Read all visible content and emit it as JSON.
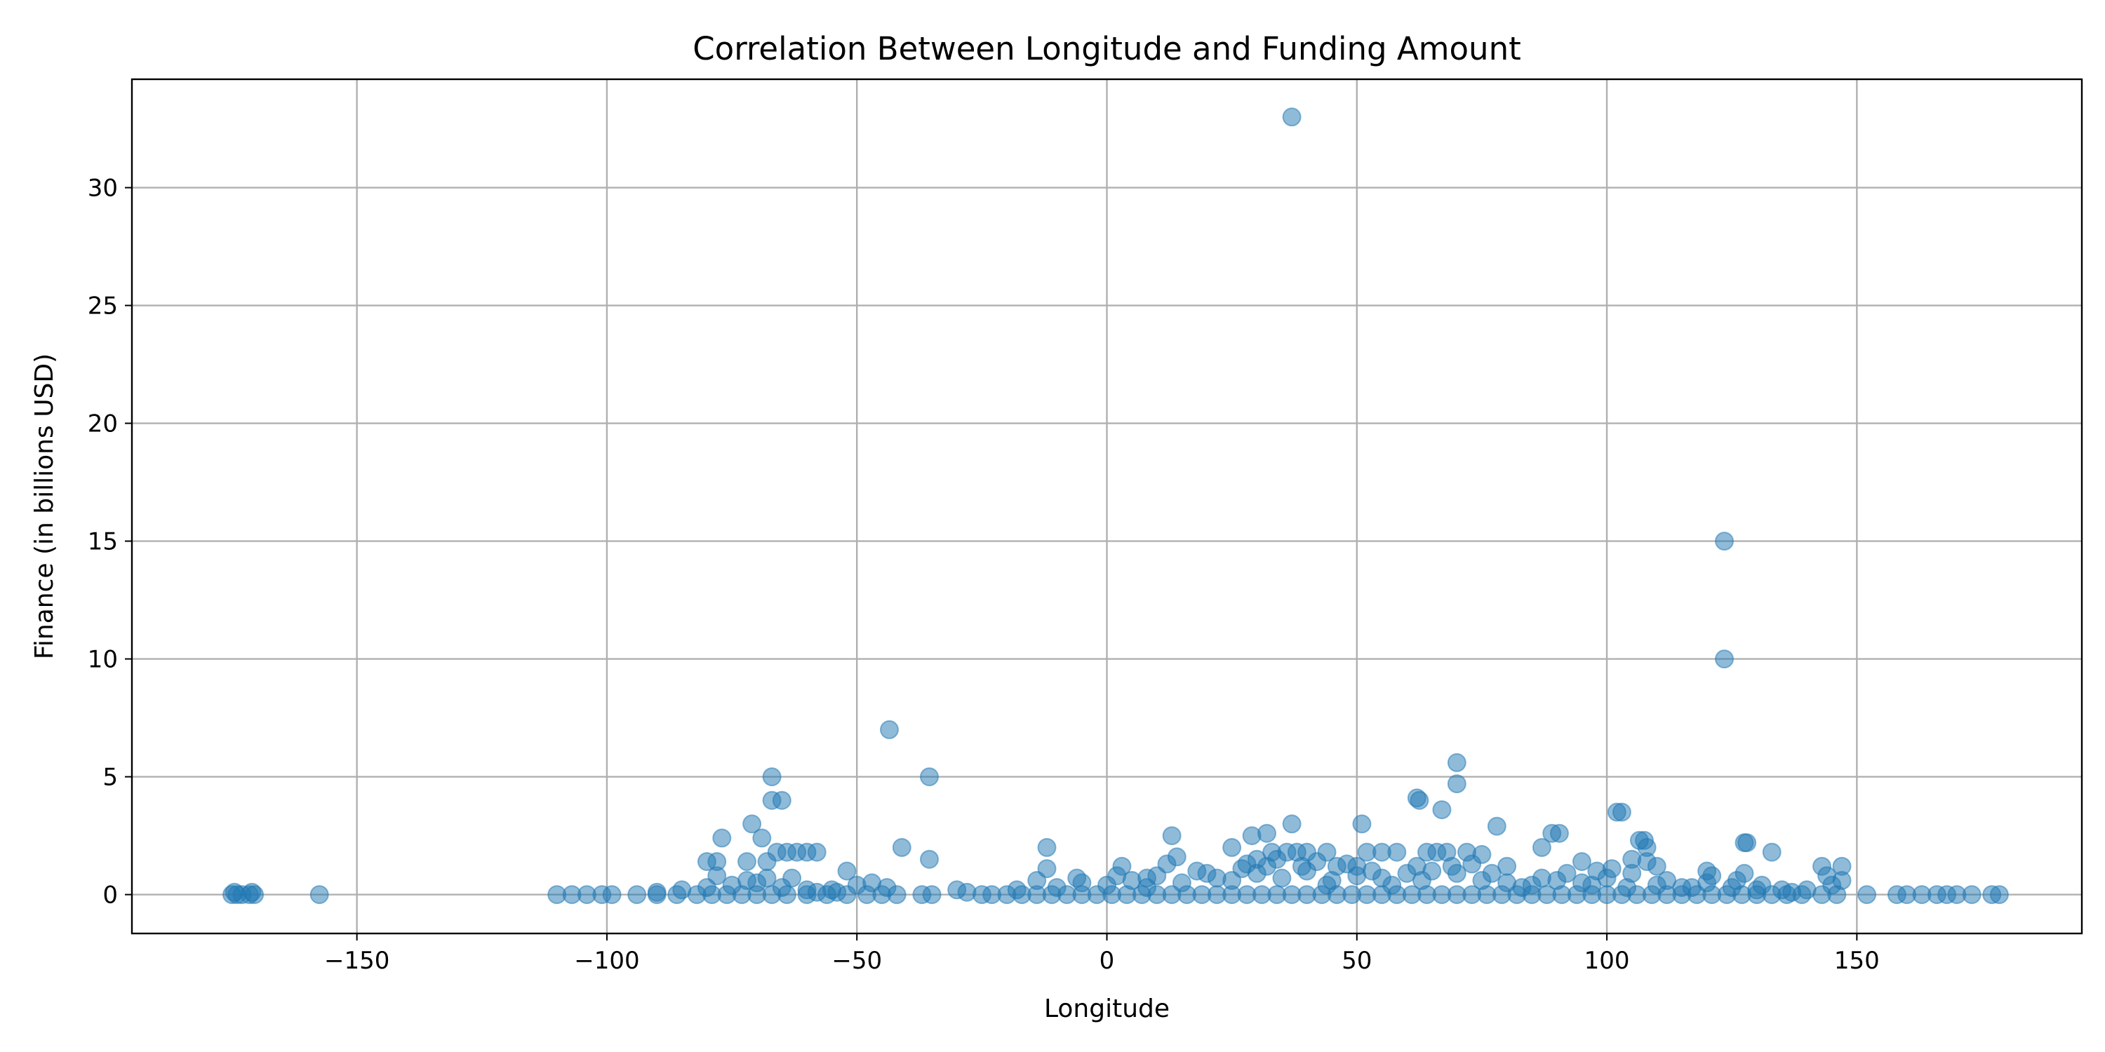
{
  "chart_data": {
    "type": "scatter",
    "title": "Correlation Between Longitude and Funding Amount",
    "xlabel": "Longitude",
    "ylabel": "Finance (in billions USD)",
    "xlim": [
      -195,
      195
    ],
    "ylim": [
      -1.65,
      34.6
    ],
    "grid": true,
    "color": "#1f77b4",
    "x_ticks": [
      -150,
      -100,
      -50,
      0,
      50,
      100,
      150
    ],
    "x_tick_labels": [
      "−150",
      "−100",
      "−50",
      "0",
      "50",
      "100",
      "150"
    ],
    "y_ticks": [
      0,
      5,
      10,
      15,
      20,
      25,
      30
    ],
    "y_tick_labels": [
      "0",
      "5",
      "10",
      "15",
      "20",
      "25",
      "30"
    ],
    "points": [
      [
        37,
        33
      ],
      [
        123.5,
        15
      ],
      [
        123.5,
        10
      ],
      [
        -43.5,
        7
      ],
      [
        70,
        5.6
      ],
      [
        -67,
        5
      ],
      [
        -35.5,
        5
      ],
      [
        70,
        4.7
      ],
      [
        62,
        4.1
      ],
      [
        -67,
        4
      ],
      [
        -65,
        4
      ],
      [
        62.5,
        4
      ],
      [
        67,
        3.6
      ],
      [
        102,
        3.5
      ],
      [
        103,
        3.5
      ],
      [
        51,
        3
      ],
      [
        37,
        3
      ],
      [
        -71,
        3
      ],
      [
        78,
        2.9
      ],
      [
        89,
        2.6
      ],
      [
        90.5,
        2.6
      ],
      [
        29,
        2.5
      ],
      [
        32,
        2.6
      ],
      [
        13,
        2.5
      ],
      [
        -77,
        2.4
      ],
      [
        -69,
        2.4
      ],
      [
        106.5,
        2.3
      ],
      [
        107.5,
        2.3
      ],
      [
        127.5,
        2.2
      ],
      [
        128,
        2.2
      ],
      [
        25,
        2
      ],
      [
        -12,
        2
      ],
      [
        -41,
        2
      ],
      [
        87,
        2
      ],
      [
        108,
        2
      ],
      [
        133,
        1.8
      ],
      [
        -35.5,
        1.5
      ],
      [
        -72,
        1.4
      ],
      [
        -78,
        1.4
      ],
      [
        -80,
        1.4
      ],
      [
        -68,
        1.4
      ],
      [
        95,
        1.4
      ],
      [
        105,
        1.5
      ],
      [
        110,
        1.2
      ],
      [
        143,
        1.2
      ],
      [
        147,
        1.2
      ],
      [
        3,
        1.2
      ],
      [
        50,
        1.2
      ],
      [
        80,
        1.2
      ],
      [
        -52,
        1
      ],
      [
        98,
        1
      ],
      [
        120,
        1
      ],
      [
        127.5,
        0.9
      ],
      [
        -63,
        0.7
      ],
      [
        8,
        0.7
      ],
      [
        44,
        1.8
      ],
      [
        -66,
        1.8
      ],
      [
        -64,
        1.8
      ],
      [
        -62,
        1.8
      ],
      [
        -60,
        1.8
      ],
      [
        -58,
        1.8
      ],
      [
        55,
        1.8
      ],
      [
        58,
        1.8
      ],
      [
        64,
        1.8
      ],
      [
        66,
        1.8
      ],
      [
        68,
        1.8
      ],
      [
        72,
        1.8
      ],
      [
        75,
        1.7
      ],
      [
        36,
        1.8
      ],
      [
        38,
        1.8
      ],
      [
        40,
        1.8
      ],
      [
        33,
        1.8
      ],
      [
        52,
        1.8
      ],
      [
        30,
        1.5
      ],
      [
        28,
        1.3
      ],
      [
        42,
        1.4
      ],
      [
        46,
        1.2
      ],
      [
        -175,
        0
      ],
      [
        -174,
        0
      ],
      [
        -173,
        0
      ],
      [
        -171.5,
        0
      ],
      [
        -170.5,
        0
      ],
      [
        -157.5,
        0
      ],
      [
        -110,
        0
      ],
      [
        -107,
        0
      ],
      [
        -104,
        0
      ],
      [
        -101,
        0
      ],
      [
        -99,
        0
      ],
      [
        -94,
        0
      ],
      [
        -90,
        0
      ],
      [
        -86,
        0
      ],
      [
        -82,
        0
      ],
      [
        -79,
        0
      ],
      [
        -76,
        0
      ],
      [
        -73,
        0
      ],
      [
        -70,
        0
      ],
      [
        -67,
        0
      ],
      [
        -64,
        0
      ],
      [
        -60,
        0
      ],
      [
        -56,
        0
      ],
      [
        -52,
        0
      ],
      [
        -48,
        0
      ],
      [
        -45,
        0
      ],
      [
        -42,
        0
      ],
      [
        -37,
        0
      ],
      [
        -35,
        0
      ],
      [
        -25,
        0
      ],
      [
        -23,
        0
      ],
      [
        -20,
        0
      ],
      [
        -17,
        0
      ],
      [
        -14,
        0
      ],
      [
        -11,
        0
      ],
      [
        -8,
        0
      ],
      [
        -5,
        0
      ],
      [
        -2,
        0
      ],
      [
        1,
        0
      ],
      [
        4,
        0
      ],
      [
        7,
        0
      ],
      [
        10,
        0
      ],
      [
        13,
        0
      ],
      [
        16,
        0
      ],
      [
        19,
        0
      ],
      [
        22,
        0
      ],
      [
        25,
        0
      ],
      [
        28,
        0
      ],
      [
        31,
        0
      ],
      [
        34,
        0
      ],
      [
        37,
        0
      ],
      [
        40,
        0
      ],
      [
        43,
        0
      ],
      [
        46,
        0
      ],
      [
        49,
        0
      ],
      [
        52,
        0
      ],
      [
        55,
        0
      ],
      [
        58,
        0
      ],
      [
        61,
        0
      ],
      [
        64,
        0
      ],
      [
        67,
        0
      ],
      [
        70,
        0
      ],
      [
        73,
        0
      ],
      [
        76,
        0
      ],
      [
        79,
        0
      ],
      [
        82,
        0
      ],
      [
        85,
        0
      ],
      [
        88,
        0
      ],
      [
        91,
        0
      ],
      [
        94,
        0
      ],
      [
        97,
        0
      ],
      [
        100,
        0
      ],
      [
        103,
        0
      ],
      [
        106,
        0
      ],
      [
        109,
        0
      ],
      [
        112,
        0
      ],
      [
        115,
        0
      ],
      [
        118,
        0
      ],
      [
        121,
        0
      ],
      [
        124,
        0
      ],
      [
        127,
        0
      ],
      [
        130,
        0
      ],
      [
        133,
        0
      ],
      [
        136,
        0
      ],
      [
        139,
        0
      ],
      [
        143,
        0
      ],
      [
        146,
        0
      ],
      [
        152,
        0
      ],
      [
        158,
        0
      ],
      [
        160,
        0
      ],
      [
        163,
        0
      ],
      [
        166,
        0
      ],
      [
        168,
        0
      ],
      [
        170,
        0
      ],
      [
        173,
        0
      ],
      [
        177,
        0
      ],
      [
        178.5,
        0
      ],
      [
        -80,
        0.3
      ],
      [
        -75,
        0.4
      ],
      [
        -70,
        0.5
      ],
      [
        -65,
        0.3
      ],
      [
        -55,
        0.2
      ],
      [
        -50,
        0.4
      ],
      [
        -44,
        0.3
      ],
      [
        -30,
        0.2
      ],
      [
        -10,
        0.3
      ],
      [
        -5,
        0.5
      ],
      [
        0,
        0.4
      ],
      [
        5,
        0.6
      ],
      [
        10,
        0.8
      ],
      [
        15,
        0.5
      ],
      [
        20,
        0.9
      ],
      [
        25,
        0.6
      ],
      [
        30,
        0.9
      ],
      [
        35,
        0.7
      ],
      [
        40,
        1
      ],
      [
        45,
        0.6
      ],
      [
        50,
        0.8
      ],
      [
        55,
        0.7
      ],
      [
        60,
        0.9
      ],
      [
        65,
        1
      ],
      [
        70,
        0.9
      ],
      [
        75,
        0.6
      ],
      [
        80,
        0.5
      ],
      [
        85,
        0.4
      ],
      [
        90,
        0.6
      ],
      [
        95,
        0.5
      ],
      [
        100,
        0.7
      ],
      [
        105,
        0.9
      ],
      [
        110,
        0.4
      ],
      [
        115,
        0.3
      ],
      [
        120,
        0.5
      ],
      [
        125,
        0.3
      ],
      [
        130,
        0.2
      ],
      [
        135,
        0.2
      ],
      [
        140,
        0.2
      ],
      [
        145,
        0.4
      ],
      [
        -85,
        0.2
      ],
      [
        -90,
        0.1
      ],
      [
        -78,
        0.8
      ],
      [
        -72,
        0.6
      ],
      [
        -68,
        0.7
      ],
      [
        12,
        1.3
      ],
      [
        18,
        1
      ],
      [
        32,
        1.2
      ],
      [
        48,
        1.3
      ],
      [
        62,
        1.2
      ],
      [
        -60,
        0.2
      ],
      [
        -58,
        0.1
      ],
      [
        -54,
        0.1
      ],
      [
        -47,
        0.5
      ],
      [
        -28,
        0.1
      ],
      [
        -18,
        0.2
      ],
      [
        -14,
        0.6
      ],
      [
        -12,
        1.1
      ],
      [
        -6,
        0.7
      ],
      [
        2,
        0.8
      ],
      [
        8,
        0.3
      ],
      [
        14,
        1.6
      ],
      [
        22,
        0.7
      ],
      [
        27,
        1.1
      ],
      [
        34,
        1.5
      ],
      [
        39,
        1.2
      ],
      [
        44,
        0.4
      ],
      [
        53,
        1
      ],
      [
        57,
        0.4
      ],
      [
        63,
        0.6
      ],
      [
        69,
        1.2
      ],
      [
        73,
        1.3
      ],
      [
        77,
        0.9
      ],
      [
        83,
        0.3
      ],
      [
        87,
        0.7
      ],
      [
        92,
        0.9
      ],
      [
        97,
        0.4
      ],
      [
        101,
        1.1
      ],
      [
        104,
        0.3
      ],
      [
        108,
        1.4
      ],
      [
        112,
        0.6
      ],
      [
        117,
        0.3
      ],
      [
        121,
        0.8
      ],
      [
        126,
        0.6
      ],
      [
        131,
        0.4
      ],
      [
        137,
        0.1
      ],
      [
        144,
        0.8
      ],
      [
        147,
        0.6
      ],
      [
        -174.5,
        0.1
      ],
      [
        -171,
        0.1
      ]
    ]
  }
}
